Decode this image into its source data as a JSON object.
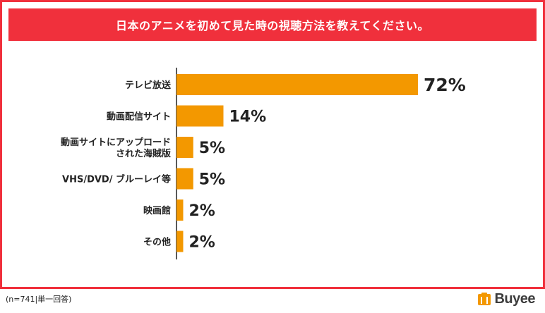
{
  "title": "日本のアニメを初めて見た時の視聴方法を教えてください。",
  "footnote": "(n=741|単一回答)",
  "brand": "Buyee",
  "colors": {
    "accent": "#f0303c",
    "bar": "#f39800",
    "text": "#222222"
  },
  "chart_data": {
    "type": "bar",
    "orientation": "horizontal",
    "categories": [
      [
        "テレビ放送"
      ],
      [
        "動画配信サイト"
      ],
      [
        "動画サイトにアップロード",
        "された海賊版"
      ],
      [
        "VHS/DVD/ ブルーレイ等"
      ],
      [
        "映画館"
      ],
      [
        "その他"
      ]
    ],
    "values": [
      72,
      14,
      5,
      5,
      2,
      2
    ],
    "value_labels": [
      "72%",
      "14%",
      "5%",
      "5%",
      "2%",
      "2%"
    ],
    "unit": "%",
    "xlim": [
      0,
      100
    ],
    "grid": false
  }
}
